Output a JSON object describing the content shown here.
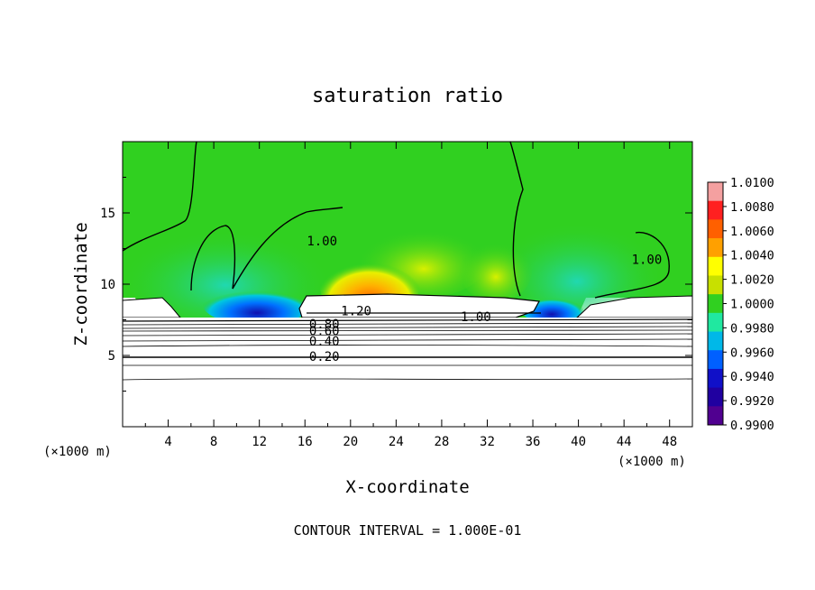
{
  "chart_data": {
    "type": "heatmap",
    "title": "saturation ratio",
    "xlabel": "X-coordinate",
    "ylabel": "Z-coordinate",
    "x_unit_left": "(×1000 m)",
    "x_unit_right": "(×1000 m)",
    "footer": "CONTOUR INTERVAL = 1.000E-01",
    "xlim": [
      0,
      50
    ],
    "ylim": [
      0,
      20
    ],
    "x_ticks": [
      4,
      8,
      12,
      16,
      20,
      24,
      28,
      32,
      36,
      40,
      44,
      48
    ],
    "x_tick_labels": [
      "4",
      "8",
      "12",
      "16",
      "20",
      "24",
      "28",
      "32",
      "36",
      "40",
      "44",
      "48"
    ],
    "y_ticks": [
      5,
      10,
      15
    ],
    "y_tick_labels": [
      "5",
      "10",
      "15"
    ],
    "colorbar": {
      "min": 0.99,
      "max": 1.01,
      "labels": [
        "1.0100",
        "1.0080",
        "1.0060",
        "1.0040",
        "1.0020",
        "1.0000",
        "0.9980",
        "0.9960",
        "0.9940",
        "0.9920",
        "0.9900"
      ],
      "colors": [
        "#f4a0a0",
        "#ff2020",
        "#ff6000",
        "#ffa000",
        "#ffff00",
        "#c8e000",
        "#30d020",
        "#20e8a0",
        "#00b8e8",
        "#0060ff",
        "#1010c8",
        "#2000a0",
        "#500090"
      ]
    },
    "contour_labels": [
      {
        "text": "1.00",
        "x": 17.5,
        "y": 12.9
      },
      {
        "text": "1.00",
        "x": 46,
        "y": 11.6
      },
      {
        "text": "1.00",
        "x": 31,
        "y": 7.6
      },
      {
        "text": "1.20",
        "x": 20.5,
        "y": 8.0
      },
      {
        "text": "0.80",
        "x": 17.7,
        "y": 7.1
      },
      {
        "text": "0.60",
        "x": 17.7,
        "y": 6.6
      },
      {
        "text": "0.40",
        "x": 17.7,
        "y": 5.9
      },
      {
        "text": "0.20",
        "x": 17.7,
        "y": 4.8
      }
    ]
  }
}
